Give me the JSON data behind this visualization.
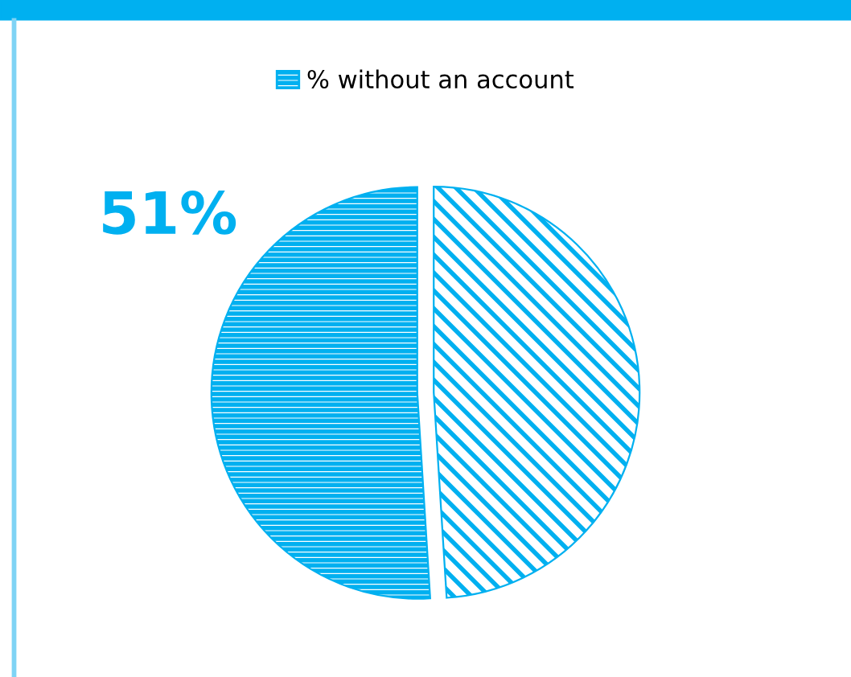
{
  "chart_data": {
    "type": "pie",
    "categories": [
      "% without an account",
      null
    ],
    "values": [
      51,
      49
    ],
    "colors": [
      "#00b0f0",
      "#00b0f0"
    ],
    "value_labels": [
      "51%",
      null
    ],
    "legend": "top"
  }
}
